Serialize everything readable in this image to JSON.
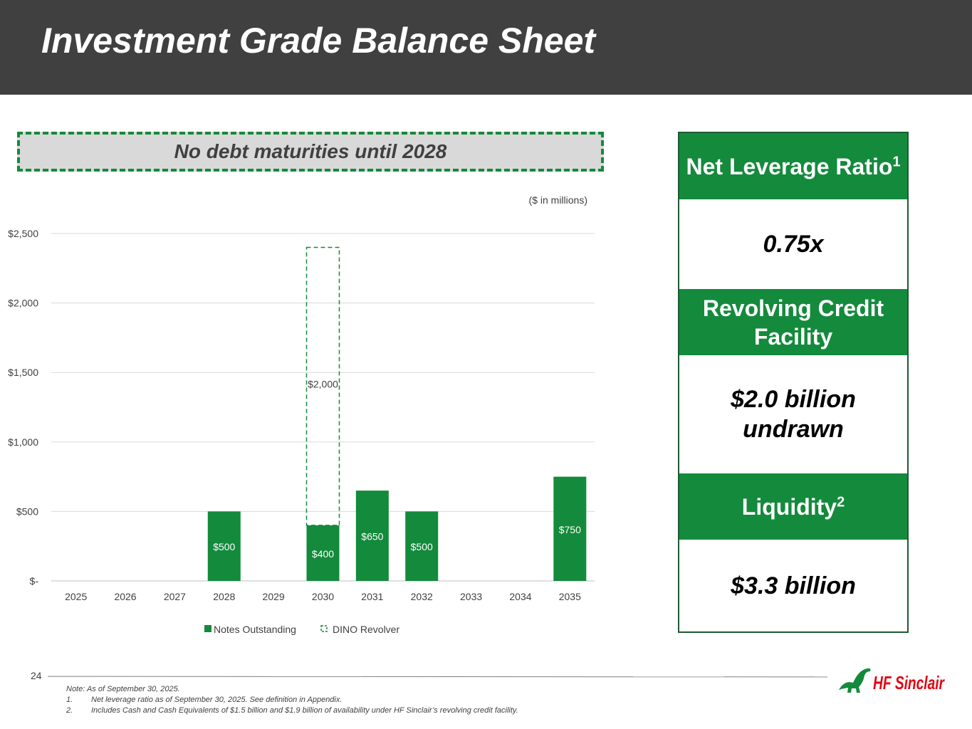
{
  "title": "Investment Grade Balance Sheet",
  "callout": "No debt maturities until 2028",
  "units_note": "($ in millions)",
  "colors": {
    "header": "#404040",
    "accent_green": "#148a3c",
    "callout_bg": "#d9d9d9"
  },
  "chart_data": {
    "type": "bar",
    "categories": [
      "2025",
      "2026",
      "2027",
      "2028",
      "2029",
      "2030",
      "2031",
      "2032",
      "2033",
      "2034",
      "2035"
    ],
    "series": [
      {
        "name": "Notes Outstanding",
        "values": [
          0,
          0,
          0,
          500,
          0,
          400,
          650,
          500,
          0,
          0,
          750
        ],
        "labels": [
          "",
          "",
          "",
          "$500",
          "",
          "$400",
          "$650",
          "$500",
          "",
          "",
          "$750"
        ],
        "color": "#148a3c",
        "style": "solid"
      },
      {
        "name": "DINO Revolver",
        "values": [
          0,
          0,
          0,
          0,
          0,
          2000,
          0,
          0,
          0,
          0,
          0
        ],
        "labels": [
          "",
          "",
          "",
          "",
          "",
          "$2,000",
          "",
          "",
          "",
          "",
          ""
        ],
        "color": "#148a3c",
        "style": "dashed-outline"
      }
    ],
    "stacked": true,
    "yticks": [
      0,
      500,
      1000,
      1500,
      2000,
      2500
    ],
    "ytick_labels": [
      "$-",
      "$500",
      "$1,000",
      "$1,500",
      "$2,000",
      "$2,500"
    ],
    "ylim": [
      0,
      2500
    ],
    "grid": true,
    "legend_position": "bottom"
  },
  "kpis": [
    {
      "head": "Net Leverage Ratio",
      "sup": "1",
      "value": "0.75x"
    },
    {
      "head": "Revolving Credit Facility",
      "sup": "",
      "value": "$2.0 billion undrawn"
    },
    {
      "head": "Liquidity",
      "sup": "2",
      "value": "$3.3 billion"
    }
  ],
  "page_number": "24",
  "footnotes": {
    "note": "Note: As of September 30, 2025.",
    "items": [
      {
        "num": "1.",
        "text": "Net leverage ratio as of September 30, 2025. See definition in Appendix."
      },
      {
        "num": "2.",
        "text": "Includes Cash and Cash Equivalents of $1.5 billion and $1.9 billion of availability under HF Sinclair’s revolving credit facility."
      }
    ]
  },
  "logo_text": "HF Sinclair"
}
